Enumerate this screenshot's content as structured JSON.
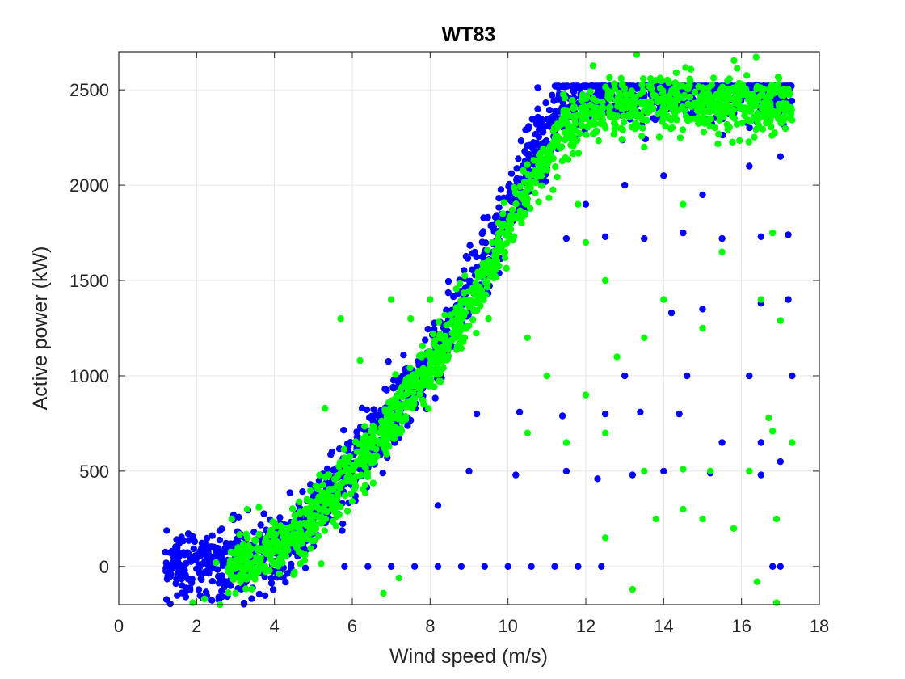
{
  "chart_data": {
    "type": "scatter",
    "title": "WT83",
    "xlabel": "Wind speed (m/s)",
    "ylabel": "Active power (kW)",
    "xlim": [
      0,
      18
    ],
    "ylim": [
      -200,
      2700
    ],
    "xticks": [
      0,
      2,
      4,
      6,
      8,
      10,
      12,
      14,
      16,
      18
    ],
    "yticks": [
      0,
      500,
      1000,
      1500,
      2000,
      2500
    ],
    "grid": true,
    "legend": "none",
    "colors": {
      "series_a": "#0000ff",
      "series_b": "#00ff00",
      "grid": "#e6e6e6",
      "axis": "#262626"
    },
    "series": [
      {
        "color": "#0000ff",
        "core_curve": [
          [
            1.2,
            0
          ],
          [
            2.5,
            0
          ],
          [
            3.5,
            40
          ],
          [
            4.5,
            160
          ],
          [
            5.5,
            400
          ],
          [
            6.5,
            650
          ],
          [
            7.5,
            900
          ],
          [
            8.5,
            1250
          ],
          [
            9.5,
            1650
          ],
          [
            10.5,
            2100
          ],
          [
            11.5,
            2450
          ],
          [
            12.5,
            2500
          ],
          [
            14,
            2500
          ],
          [
            17.3,
            2500
          ]
        ],
        "outliers": [
          [
            5.8,
            0
          ],
          [
            6.4,
            0
          ],
          [
            7.0,
            0
          ],
          [
            7.6,
            0
          ],
          [
            8.2,
            0
          ],
          [
            8.8,
            0
          ],
          [
            9.4,
            0
          ],
          [
            10.0,
            0
          ],
          [
            10.6,
            0
          ],
          [
            11.2,
            0
          ],
          [
            11.8,
            0
          ],
          [
            12.4,
            0
          ],
          [
            8.2,
            320
          ],
          [
            9.0,
            500
          ],
          [
            10.2,
            480
          ],
          [
            11.5,
            500
          ],
          [
            12.3,
            460
          ],
          [
            13.2,
            480
          ],
          [
            14.0,
            500
          ],
          [
            15.2,
            490
          ],
          [
            16.5,
            480
          ],
          [
            9.2,
            800
          ],
          [
            10.3,
            810
          ],
          [
            11.4,
            790
          ],
          [
            12.5,
            800
          ],
          [
            13.4,
            810
          ],
          [
            14.4,
            800
          ],
          [
            13.0,
            1000
          ],
          [
            14.6,
            1000
          ],
          [
            16.2,
            1000
          ],
          [
            17.3,
            1000
          ],
          [
            14.2,
            1330
          ],
          [
            15.0,
            1350
          ],
          [
            16.5,
            1380
          ],
          [
            17.2,
            1400
          ],
          [
            11.5,
            1720
          ],
          [
            12.5,
            1730
          ],
          [
            13.5,
            1720
          ],
          [
            14.5,
            1750
          ],
          [
            15.5,
            1720
          ],
          [
            16.5,
            1730
          ],
          [
            17.2,
            1740
          ],
          [
            12.0,
            1900
          ],
          [
            13.0,
            2000
          ],
          [
            14.0,
            2050
          ],
          [
            15.0,
            1950
          ],
          [
            16.2,
            2100
          ],
          [
            17.0,
            2150
          ],
          [
            15.5,
            650
          ],
          [
            16.5,
            650
          ],
          [
            17.0,
            550
          ],
          [
            16.8,
            0
          ],
          [
            17.0,
            0
          ]
        ]
      },
      {
        "color": "#00ff00",
        "core_curve": [
          [
            2.8,
            0
          ],
          [
            3.5,
            30
          ],
          [
            4.5,
            130
          ],
          [
            5.5,
            370
          ],
          [
            6.5,
            620
          ],
          [
            7.5,
            900
          ],
          [
            8.5,
            1200
          ],
          [
            9.5,
            1550
          ],
          [
            10.5,
            2000
          ],
          [
            11.5,
            2300
          ],
          [
            12.5,
            2400
          ],
          [
            14,
            2450
          ],
          [
            15,
            2430
          ],
          [
            17.3,
            2400
          ]
        ],
        "outliers": [
          [
            1.9,
            -190
          ],
          [
            2.2,
            -170
          ],
          [
            2.6,
            -200
          ],
          [
            3.0,
            -140
          ],
          [
            2.5,
            20
          ],
          [
            2.9,
            250
          ],
          [
            3.3,
            300
          ],
          [
            3.6,
            310
          ],
          [
            4.0,
            230
          ],
          [
            5.3,
            830
          ],
          [
            5.7,
            1300
          ],
          [
            6.2,
            1080
          ],
          [
            7.0,
            1400
          ],
          [
            7.5,
            1300
          ],
          [
            8.0,
            1400
          ],
          [
            6.8,
            -140
          ],
          [
            7.2,
            -60
          ],
          [
            5.8,
            570
          ],
          [
            9.5,
            1300
          ],
          [
            10.5,
            1200
          ],
          [
            11.0,
            1000
          ],
          [
            12.0,
            900
          ],
          [
            12.8,
            1100
          ],
          [
            13.5,
            1200
          ],
          [
            14.0,
            1400
          ],
          [
            15.0,
            1250
          ],
          [
            16.5,
            1400
          ],
          [
            17.0,
            1290
          ],
          [
            10.5,
            700
          ],
          [
            11.5,
            650
          ],
          [
            12.5,
            700
          ],
          [
            13.5,
            500
          ],
          [
            14.5,
            510
          ],
          [
            15.2,
            500
          ],
          [
            16.2,
            500
          ],
          [
            16.7,
            780
          ],
          [
            17.3,
            650
          ],
          [
            16.8,
            710
          ],
          [
            12.0,
            1700
          ],
          [
            12.5,
            1500
          ],
          [
            13.5,
            2200
          ],
          [
            14.5,
            1900
          ],
          [
            15.5,
            1650
          ],
          [
            16.8,
            1750
          ],
          [
            11.8,
            1900
          ],
          [
            13.8,
            250
          ],
          [
            14.5,
            300
          ],
          [
            15.0,
            250
          ],
          [
            15.8,
            200
          ],
          [
            16.4,
            -80
          ],
          [
            16.9,
            -190
          ],
          [
            13.2,
            -120
          ],
          [
            16.9,
            250
          ],
          [
            12.5,
            150
          ]
        ]
      }
    ]
  }
}
